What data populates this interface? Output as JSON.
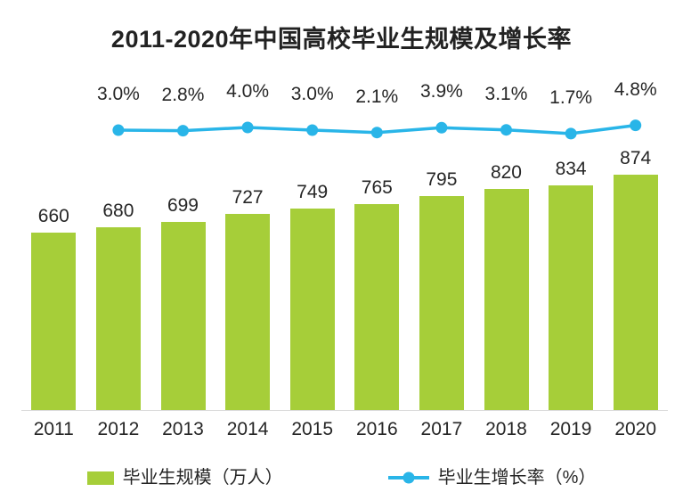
{
  "chart": {
    "title": "2011-2020年中国高校毕业生规模及增长率"
  },
  "legend": {
    "bar_label": "毕业生规模（万人）",
    "line_label": "毕业生增长率（%）"
  },
  "colors": {
    "bar": "#a6ce39",
    "line": "#29b5e8",
    "text": "#262626"
  },
  "chart_data": {
    "type": "bar",
    "subtype": "bar+line combo",
    "title": "2011-2020年中国高校毕业生规模及增长率",
    "categories": [
      "2011",
      "2012",
      "2013",
      "2014",
      "2015",
      "2016",
      "2017",
      "2018",
      "2019",
      "2020"
    ],
    "series": [
      {
        "name": "毕业生规模（万人）",
        "type": "bar",
        "color": "#a6ce39",
        "values": [
          660,
          680,
          699,
          727,
          749,
          765,
          795,
          820,
          834,
          874
        ],
        "labels": [
          "660",
          "680",
          "699",
          "727",
          "749",
          "765",
          "795",
          "820",
          "834",
          "874"
        ]
      },
      {
        "name": "毕业生增长率（%）",
        "type": "line",
        "color": "#29b5e8",
        "values": [
          null,
          3.0,
          2.8,
          4.0,
          3.0,
          2.1,
          3.9,
          3.1,
          1.7,
          4.8
        ],
        "labels": [
          "",
          "3.0%",
          "2.8%",
          "4.0%",
          "3.0%",
          "2.1%",
          "3.9%",
          "3.1%",
          "1.7%",
          "4.8%"
        ]
      }
    ],
    "xlabel": "",
    "ylabel": "",
    "value_labels_shown": true,
    "axes_hidden": true,
    "grid": false,
    "legend_position": "bottom"
  }
}
